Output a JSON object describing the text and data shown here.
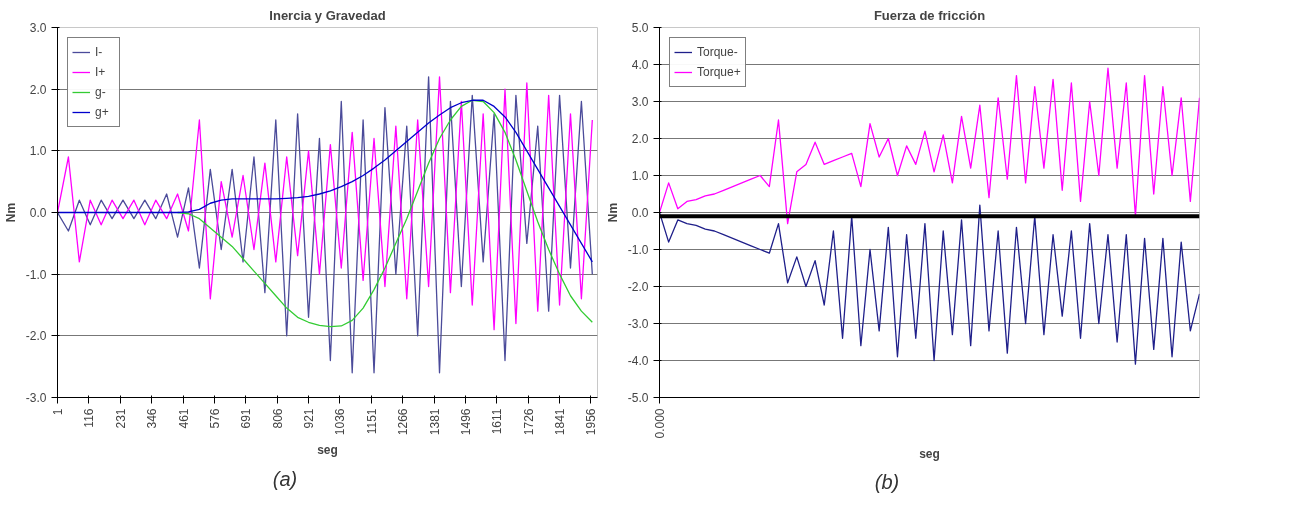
{
  "chart_data": [
    {
      "type": "line",
      "title": "Inercia y Gravedad",
      "xlabel": "seg",
      "ylabel": "Nm",
      "annotations": [
        "(a)"
      ],
      "x": [
        1,
        41,
        81,
        121,
        161,
        201,
        241,
        281,
        321,
        361,
        401,
        441,
        481,
        521,
        561,
        601,
        641,
        681,
        721,
        761,
        801,
        841,
        881,
        921,
        961,
        1001,
        1041,
        1081,
        1121,
        1161,
        1201,
        1241,
        1281,
        1321,
        1361,
        1401,
        1441,
        1481,
        1521,
        1561,
        1601,
        1641,
        1681,
        1721,
        1761,
        1801,
        1841,
        1881,
        1921,
        1961
      ],
      "xlim": [
        1,
        1980
      ],
      "xticks": [
        1,
        116,
        231,
        346,
        461,
        576,
        691,
        806,
        921,
        1036,
        1151,
        1266,
        1381,
        1496,
        1611,
        1726,
        1841,
        1956
      ],
      "ylim": [
        -3,
        3
      ],
      "yticks": [
        {
          "value": -3,
          "label": "-3.0"
        },
        {
          "value": -2,
          "label": "-2.0"
        },
        {
          "value": -1,
          "label": "-1.0"
        },
        {
          "value": 0,
          "label": "0.0"
        },
        {
          "value": 1,
          "label": "1.0"
        },
        {
          "value": 2,
          "label": "2.0"
        },
        {
          "value": 3,
          "label": "3.0"
        }
      ],
      "grid": "y",
      "legend": "top left",
      "series": [
        {
          "name": "I-",
          "color": "#4b4b9a",
          "values": [
            0,
            -0.3,
            0.2,
            -0.2,
            0.2,
            -0.1,
            0.2,
            -0.1,
            0.2,
            -0.1,
            0.3,
            -0.4,
            0.4,
            -0.9,
            0.7,
            -0.6,
            0.7,
            -0.8,
            0.9,
            -1.3,
            1.5,
            -2.0,
            1.6,
            -1.7,
            1.2,
            -2.4,
            1.8,
            -2.6,
            1.5,
            -2.6,
            1.7,
            -1.0,
            1.4,
            -2.0,
            2.2,
            -2.6,
            1.8,
            -1.2,
            1.9,
            -0.8,
            1.6,
            -2.4,
            1.9,
            -0.5,
            1.4,
            -1.6,
            1.9,
            -0.9,
            1.8,
            -1.0
          ]
        },
        {
          "name": "I+",
          "color": "#ff00ff",
          "values": [
            0,
            0.9,
            -0.8,
            0.2,
            -0.2,
            0.2,
            -0.1,
            0.2,
            -0.2,
            0.2,
            -0.1,
            0.3,
            -0.3,
            1.5,
            -1.4,
            0.5,
            -0.4,
            0.6,
            -0.6,
            0.8,
            -0.8,
            0.9,
            -0.7,
            1.0,
            -1.0,
            1.1,
            -0.9,
            1.3,
            -1.1,
            1.2,
            -1.2,
            1.4,
            -1.4,
            1.5,
            -1.2,
            2.2,
            -1.3,
            1.8,
            -1.5,
            1.6,
            -1.9,
            2.0,
            -1.8,
            2.1,
            -1.6,
            1.9,
            -1.5,
            1.6,
            -1.4,
            1.5
          ]
        },
        {
          "name": "g-",
          "color": "#33cc33",
          "values": [
            null,
            null,
            null,
            null,
            null,
            null,
            null,
            null,
            null,
            null,
            null,
            0,
            -0.02,
            -0.1,
            -0.25,
            -0.4,
            -0.55,
            -0.75,
            -0.95,
            -1.15,
            -1.35,
            -1.55,
            -1.7,
            -1.78,
            -1.83,
            -1.85,
            -1.84,
            -1.75,
            -1.55,
            -1.25,
            -0.9,
            -0.5,
            -0.1,
            0.35,
            0.8,
            1.2,
            1.5,
            1.72,
            1.82,
            1.8,
            1.62,
            1.3,
            0.85,
            0.35,
            -0.15,
            -0.6,
            -1.0,
            -1.35,
            -1.6,
            -1.78
          ]
        },
        {
          "name": "g+",
          "color": "#0000cc",
          "values": [
            0,
            0,
            0,
            0,
            0,
            0,
            0,
            0,
            0,
            0,
            0,
            0,
            0.01,
            0.05,
            0.15,
            0.2,
            0.22,
            0.22,
            0.22,
            0.22,
            0.22,
            0.23,
            0.24,
            0.26,
            0.3,
            0.35,
            0.42,
            0.5,
            0.6,
            0.72,
            0.85,
            1.0,
            1.15,
            1.3,
            1.45,
            1.58,
            1.7,
            1.78,
            1.82,
            1.82,
            1.72,
            1.55,
            1.3,
            1.0,
            0.7,
            0.4,
            0.1,
            -0.2,
            -0.5,
            -0.8
          ]
        }
      ]
    },
    {
      "type": "line",
      "title": "Fuerza de fricción",
      "xlabel": "seg",
      "ylabel": "Nm",
      "annotations": [
        "(b)"
      ],
      "categories": [
        "0.000",
        null,
        null,
        null,
        null,
        null,
        null,
        null,
        null,
        null,
        null,
        null,
        null,
        null,
        null,
        null,
        null,
        null,
        null,
        null,
        null,
        null,
        null,
        null,
        null,
        null,
        null,
        null,
        null,
        null,
        null,
        null,
        null,
        null,
        null,
        null,
        null,
        null,
        null,
        null,
        null,
        null,
        null,
        null,
        null,
        null,
        null,
        null,
        null,
        null,
        null,
        null,
        null,
        null,
        null,
        null,
        null,
        null,
        null,
        null
      ],
      "ylim": [
        -5,
        5
      ],
      "yticks": [
        {
          "value": -5,
          "label": "-5.0"
        },
        {
          "value": -4,
          "label": "-4.0"
        },
        {
          "value": -3,
          "label": "-3.0"
        },
        {
          "value": -2,
          "label": "-2.0"
        },
        {
          "value": -1,
          "label": "-1.0"
        },
        {
          "value": 0,
          "label": "0.0"
        },
        {
          "value": 1,
          "label": "1.0"
        },
        {
          "value": 2,
          "label": "2.0"
        },
        {
          "value": 3,
          "label": "3.0"
        },
        {
          "value": 4,
          "label": "4.0"
        },
        {
          "value": 5,
          "label": "5.0"
        }
      ],
      "grid": "y",
      "legend": "top left",
      "ref_lines": [
        {
          "axis": "y",
          "value": -0.1,
          "color": "#000000"
        }
      ],
      "series": [
        {
          "name": "Torque-",
          "color": "#1f1f8a",
          "values": [
            0,
            -0.8,
            -0.2,
            -0.3,
            -0.35,
            -0.45,
            -0.5,
            -0.6,
            -0.7,
            -0.8,
            -0.9,
            -1.0,
            -1.1,
            -0.3,
            -1.9,
            -1.2,
            -2.0,
            -1.3,
            -2.5,
            -0.5,
            -3.4,
            -0.1,
            -3.6,
            -1.0,
            -3.2,
            -0.4,
            -3.9,
            -0.6,
            -3.4,
            -0.3,
            -4.0,
            -0.5,
            -3.3,
            -0.2,
            -3.6,
            0.2,
            -3.2,
            -0.5,
            -3.8,
            -0.4,
            -3.0,
            -0.1,
            -3.3,
            -0.6,
            -2.8,
            -0.5,
            -3.4,
            -0.3,
            -3.0,
            -0.6,
            -3.5,
            -0.6,
            -4.1,
            -0.7,
            -3.7,
            -0.7,
            -3.9,
            -0.8,
            -3.2,
            -2.2
          ]
        },
        {
          "name": "Torque+",
          "color": "#ff00ff",
          "values": [
            0,
            0.8,
            0.1,
            0.3,
            0.35,
            0.45,
            0.5,
            0.6,
            0.7,
            0.8,
            0.9,
            1.0,
            0.7,
            2.5,
            -0.3,
            1.1,
            1.3,
            1.9,
            1.3,
            1.4,
            1.5,
            1.6,
            0.7,
            2.4,
            1.5,
            2.0,
            1.0,
            1.8,
            1.3,
            2.2,
            1.1,
            2.1,
            0.8,
            2.6,
            1.2,
            2.9,
            0.4,
            3.1,
            0.9,
            3.7,
            0.8,
            3.4,
            1.2,
            3.6,
            0.6,
            3.5,
            0.3,
            3.0,
            1.0,
            3.9,
            1.2,
            3.5,
            -0.1,
            3.7,
            0.5,
            3.4,
            1.0,
            3.1,
            0.3,
            3.1
          ]
        }
      ]
    }
  ]
}
